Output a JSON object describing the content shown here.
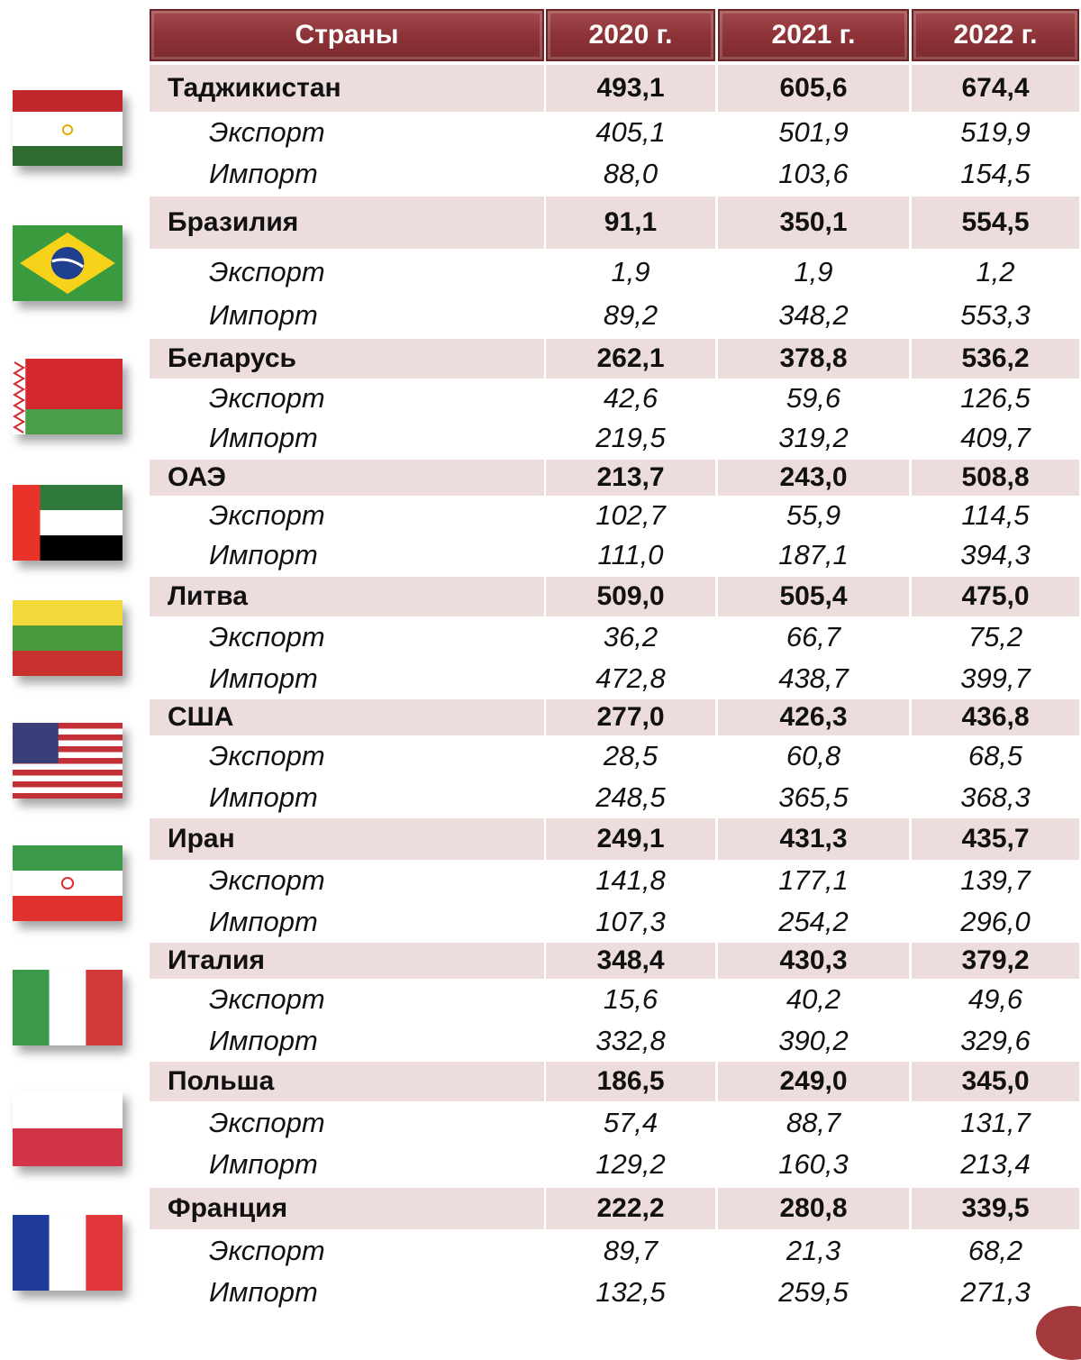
{
  "header": {
    "countries_label": "Страны",
    "years": [
      "2020 г.",
      "2021 г.",
      "2022 г."
    ]
  },
  "colors": {
    "header_bg": "#8c3237",
    "country_row_bg": "#ecdcdc"
  },
  "rows": [
    {
      "country": "Таджикистан",
      "flag": "tajikistan-flag-icon",
      "total": [
        "493,1",
        "605,6",
        "674,4"
      ],
      "export_label": "Экспорт",
      "export": [
        "405,1",
        "501,9",
        "519,9"
      ],
      "import_label": "Импорт",
      "import": [
        "88,0",
        "103,6",
        "154,5"
      ]
    },
    {
      "country": "Бразилия",
      "flag": "brazil-flag-icon",
      "total": [
        "91,1",
        "350,1",
        "554,5"
      ],
      "export_label": "Экспорт",
      "export": [
        "1,9",
        "1,9",
        "1,2"
      ],
      "import_label": "Импорт",
      "import": [
        "89,2",
        "348,2",
        "553,3"
      ]
    },
    {
      "country": "Беларусь",
      "flag": "belarus-flag-icon",
      "total": [
        "262,1",
        "378,8",
        "536,2"
      ],
      "export_label": "Экспорт",
      "export": [
        "42,6",
        "59,6",
        "126,5"
      ],
      "import_label": "Импорт",
      "import": [
        "219,5",
        "319,2",
        "409,7"
      ]
    },
    {
      "country": "ОАЭ",
      "flag": "uae-flag-icon",
      "total": [
        "213,7",
        "243,0",
        "508,8"
      ],
      "export_label": "Экспорт",
      "export": [
        "102,7",
        "55,9",
        "114,5"
      ],
      "import_label": "Импорт",
      "import": [
        "111,0",
        "187,1",
        "394,3"
      ]
    },
    {
      "country": "Литва",
      "flag": "lithuania-flag-icon",
      "total": [
        "509,0",
        "505,4",
        "475,0"
      ],
      "export_label": "Экспорт",
      "export": [
        "36,2",
        "66,7",
        "75,2"
      ],
      "import_label": "Импорт",
      "import": [
        "472,8",
        "438,7",
        "399,7"
      ]
    },
    {
      "country": "США",
      "flag": "usa-flag-icon",
      "total": [
        "277,0",
        "426,3",
        "436,8"
      ],
      "export_label": "Экспорт",
      "export": [
        "28,5",
        "60,8",
        "68,5"
      ],
      "import_label": "Импорт",
      "import": [
        "248,5",
        "365,5",
        "368,3"
      ]
    },
    {
      "country": "Иран",
      "flag": "iran-flag-icon",
      "total": [
        "249,1",
        "431,3",
        "435,7"
      ],
      "export_label": "Экспорт",
      "export": [
        "141,8",
        "177,1",
        "139,7"
      ],
      "import_label": "Импорт",
      "import": [
        "107,3",
        "254,2",
        "296,0"
      ]
    },
    {
      "country": "Италия",
      "flag": "italy-flag-icon",
      "total": [
        "348,4",
        "430,3",
        "379,2"
      ],
      "export_label": "Экспорт",
      "export": [
        "15,6",
        "40,2",
        "49,6"
      ],
      "import_label": "Импорт",
      "import": [
        "332,8",
        "390,2",
        "329,6"
      ]
    },
    {
      "country": "Польша",
      "flag": "poland-flag-icon",
      "total": [
        "186,5",
        "249,0",
        "345,0"
      ],
      "export_label": "Экспорт",
      "export": [
        "57,4",
        "88,7",
        "131,7"
      ],
      "import_label": "Импорт",
      "import": [
        "129,2",
        "160,3",
        "213,4"
      ]
    },
    {
      "country": "Франция",
      "flag": "france-flag-icon",
      "total": [
        "222,2",
        "280,8",
        "339,5"
      ],
      "export_label": "Экспорт",
      "export": [
        "89,7",
        "21,3",
        "68,2"
      ],
      "import_label": "Импорт",
      "import": [
        "132,5",
        "259,5",
        "271,3"
      ]
    }
  ]
}
